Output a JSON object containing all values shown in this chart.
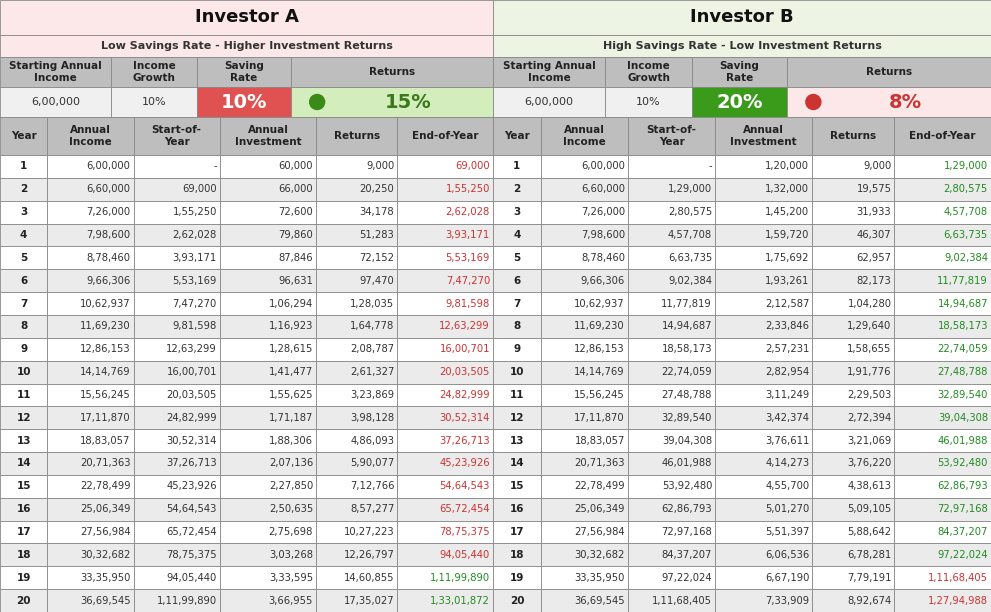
{
  "title_a": "Investor A",
  "subtitle_a": "Low Savings Rate - Higher Investment Returns",
  "title_b": "Investor B",
  "subtitle_b": "High Savings Rate - Low Investment Returns",
  "bg_a": "#fce8e8",
  "bg_b": "#eef4e4",
  "investor_a": {
    "starting_income": "6,00,000",
    "income_growth": "10%",
    "saving_rate": "10%",
    "returns": "15%",
    "saving_rate_bg": "#e05252",
    "returns_bg": "#d4edbc",
    "saving_rate_color": "#ffffff",
    "returns_color": "#3a7a1a",
    "circle_color": "#3a8a1a",
    "data": [
      [
        1,
        "6,00,000",
        "-",
        "60,000",
        "9,000",
        "69,000"
      ],
      [
        2,
        "6,60,000",
        "69,000",
        "66,000",
        "20,250",
        "1,55,250"
      ],
      [
        3,
        "7,26,000",
        "1,55,250",
        "72,600",
        "34,178",
        "2,62,028"
      ],
      [
        4,
        "7,98,600",
        "2,62,028",
        "79,860",
        "51,283",
        "3,93,171"
      ],
      [
        5,
        "8,78,460",
        "3,93,171",
        "87,846",
        "72,152",
        "5,53,169"
      ],
      [
        6,
        "9,66,306",
        "5,53,169",
        "96,631",
        "97,470",
        "7,47,270"
      ],
      [
        7,
        "10,62,937",
        "7,47,270",
        "1,06,294",
        "1,28,035",
        "9,81,598"
      ],
      [
        8,
        "11,69,230",
        "9,81,598",
        "1,16,923",
        "1,64,778",
        "12,63,299"
      ],
      [
        9,
        "12,86,153",
        "12,63,299",
        "1,28,615",
        "2,08,787",
        "16,00,701"
      ],
      [
        10,
        "14,14,769",
        "16,00,701",
        "1,41,477",
        "2,61,327",
        "20,03,505"
      ],
      [
        11,
        "15,56,245",
        "20,03,505",
        "1,55,625",
        "3,23,869",
        "24,82,999"
      ],
      [
        12,
        "17,11,870",
        "24,82,999",
        "1,71,187",
        "3,98,128",
        "30,52,314"
      ],
      [
        13,
        "18,83,057",
        "30,52,314",
        "1,88,306",
        "4,86,093",
        "37,26,713"
      ],
      [
        14,
        "20,71,363",
        "37,26,713",
        "2,07,136",
        "5,90,077",
        "45,23,926"
      ],
      [
        15,
        "22,78,499",
        "45,23,926",
        "2,27,850",
        "7,12,766",
        "54,64,543"
      ],
      [
        16,
        "25,06,349",
        "54,64,543",
        "2,50,635",
        "8,57,277",
        "65,72,454"
      ],
      [
        17,
        "27,56,984",
        "65,72,454",
        "2,75,698",
        "10,27,223",
        "78,75,375"
      ],
      [
        18,
        "30,32,682",
        "78,75,375",
        "3,03,268",
        "12,26,797",
        "94,05,440"
      ],
      [
        19,
        "33,35,950",
        "94,05,440",
        "3,33,595",
        "14,60,855",
        "1,11,99,890"
      ],
      [
        20,
        "36,69,545",
        "1,11,99,890",
        "3,66,955",
        "17,35,027",
        "1,33,01,872"
      ]
    ],
    "eoy_colors": [
      "#cc3333",
      "#cc3333",
      "#cc3333",
      "#cc3333",
      "#cc3333",
      "#cc3333",
      "#cc3333",
      "#cc3333",
      "#cc3333",
      "#cc3333",
      "#cc3333",
      "#cc3333",
      "#cc3333",
      "#cc3333",
      "#cc3333",
      "#cc3333",
      "#cc3333",
      "#cc3333",
      "#228b22",
      "#228b22"
    ]
  },
  "investor_b": {
    "starting_income": "6,00,000",
    "income_growth": "10%",
    "saving_rate": "20%",
    "returns": "8%",
    "saving_rate_bg": "#3a9a1a",
    "returns_bg": "#fce8e8",
    "saving_rate_color": "#ffffff",
    "returns_color": "#cc3333",
    "circle_color": "#cc3333",
    "data": [
      [
        1,
        "6,00,000",
        "-",
        "1,20,000",
        "9,000",
        "1,29,000"
      ],
      [
        2,
        "6,60,000",
        "1,29,000",
        "1,32,000",
        "19,575",
        "2,80,575"
      ],
      [
        3,
        "7,26,000",
        "2,80,575",
        "1,45,200",
        "31,933",
        "4,57,708"
      ],
      [
        4,
        "7,98,600",
        "4,57,708",
        "1,59,720",
        "46,307",
        "6,63,735"
      ],
      [
        5,
        "8,78,460",
        "6,63,735",
        "1,75,692",
        "62,957",
        "9,02,384"
      ],
      [
        6,
        "9,66,306",
        "9,02,384",
        "1,93,261",
        "82,173",
        "11,77,819"
      ],
      [
        7,
        "10,62,937",
        "11,77,819",
        "2,12,587",
        "1,04,280",
        "14,94,687"
      ],
      [
        8,
        "11,69,230",
        "14,94,687",
        "2,33,846",
        "1,29,640",
        "18,58,173"
      ],
      [
        9,
        "12,86,153",
        "18,58,173",
        "2,57,231",
        "1,58,655",
        "22,74,059"
      ],
      [
        10,
        "14,14,769",
        "22,74,059",
        "2,82,954",
        "1,91,776",
        "27,48,788"
      ],
      [
        11,
        "15,56,245",
        "27,48,788",
        "3,11,249",
        "2,29,503",
        "32,89,540"
      ],
      [
        12,
        "17,11,870",
        "32,89,540",
        "3,42,374",
        "2,72,394",
        "39,04,308"
      ],
      [
        13,
        "18,83,057",
        "39,04,308",
        "3,76,611",
        "3,21,069",
        "46,01,988"
      ],
      [
        14,
        "20,71,363",
        "46,01,988",
        "4,14,273",
        "3,76,220",
        "53,92,480"
      ],
      [
        15,
        "22,78,499",
        "53,92,480",
        "4,55,700",
        "4,38,613",
        "62,86,793"
      ],
      [
        16,
        "25,06,349",
        "62,86,793",
        "5,01,270",
        "5,09,105",
        "72,97,168"
      ],
      [
        17,
        "27,56,984",
        "72,97,168",
        "5,51,397",
        "5,88,642",
        "84,37,207"
      ],
      [
        18,
        "30,32,682",
        "84,37,207",
        "6,06,536",
        "6,78,281",
        "97,22,024"
      ],
      [
        19,
        "33,35,950",
        "97,22,024",
        "6,67,190",
        "7,79,191",
        "1,11,68,405"
      ],
      [
        20,
        "36,69,545",
        "1,11,68,405",
        "7,33,909",
        "8,92,674",
        "1,27,94,988"
      ]
    ],
    "eoy_colors": [
      "#228b22",
      "#228b22",
      "#228b22",
      "#228b22",
      "#228b22",
      "#228b22",
      "#228b22",
      "#228b22",
      "#228b22",
      "#228b22",
      "#228b22",
      "#228b22",
      "#228b22",
      "#228b22",
      "#228b22",
      "#228b22",
      "#228b22",
      "#228b22",
      "#cc3333",
      "#cc3333"
    ]
  }
}
